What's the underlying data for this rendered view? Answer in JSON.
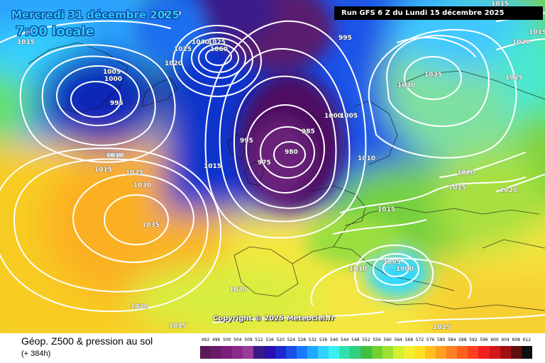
{
  "header": {
    "date": "Mercredi 31 décembre 2025",
    "time": "7:00 locale",
    "run": "Run GFS 6 Z du Lundi 15 décembre 2025"
  },
  "copyright": "Copyright © 2025 Meteociel.fr",
  "footer": {
    "title": "Géop. Z500 & pression au sol",
    "subtitle": "(+ 384h)"
  },
  "scale": {
    "labels": [
      "492",
      "496",
      "500",
      "504",
      "508",
      "512",
      "516",
      "520",
      "524",
      "528",
      "532",
      "536",
      "540",
      "544",
      "548",
      "552",
      "556",
      "560",
      "564",
      "568",
      "572",
      "576",
      "580",
      "584",
      "588",
      "592",
      "596",
      "600",
      "604",
      "608",
      "612"
    ],
    "colors": [
      "#5a1a55",
      "#6a1a66",
      "#7a1e7a",
      "#8a2a8a",
      "#9a3a9a",
      "#3a1a8a",
      "#2a10b0",
      "#1c2ad0",
      "#1a50e8",
      "#1a7aff",
      "#20a8ff",
      "#30d0ff",
      "#38f0f0",
      "#30e0b0",
      "#30d080",
      "#40c040",
      "#70d030",
      "#a0e030",
      "#d0f030",
      "#f0f030",
      "#ffe020",
      "#ffc020",
      "#ffa020",
      "#ff8020",
      "#ff6020",
      "#ff4020",
      "#f02020",
      "#d01818",
      "#a01010",
      "#601010",
      "#101010"
    ]
  },
  "isobars": [
    "1030",
    "1015",
    "1025",
    "1005",
    "1000",
    "995",
    "1020",
    "1010",
    "1015",
    "1025",
    "1030",
    "1035",
    "1015",
    "1040",
    "1025",
    "1060",
    "995",
    "985",
    "975",
    "980",
    "995",
    "1000",
    "1005",
    "1010",
    "1030",
    "1035",
    "1025",
    "1020",
    "1015",
    "1020",
    "1015",
    "1015",
    "1010",
    "1005",
    "1000",
    "1020",
    "1020",
    "1015",
    "1015",
    "1020",
    "1010",
    "1015"
  ]
}
